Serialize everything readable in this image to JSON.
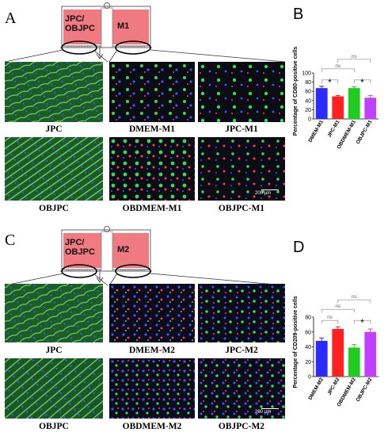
{
  "top": {
    "panel_letter": "A",
    "chamber_left_text": "JPC/\nOBJPC",
    "chamber_right_text": "M1",
    "captions": {
      "jpc": "JPC",
      "objpc": "OBJPC",
      "dmem": "DMEM-M1",
      "jpc_m": "JPC-M1",
      "obdmem": "OBDMEM-M1",
      "objpc_m": "OBJPC-M1"
    },
    "scale_bar": "200 μm"
  },
  "bottom": {
    "panel_letter": "C",
    "chamber_left_text": "JPC/\nOBJPC",
    "chamber_right_text": "M2",
    "captions": {
      "jpc": "JPC",
      "objpc": "OBJPC",
      "dmem": "DMEM-M2",
      "jpc_m": "JPC-M2",
      "obdmem": "OBDMEM-M2",
      "objpc_m": "OBJPC-M2"
    },
    "scale_bar": "200 μm"
  },
  "colors": {
    "chamber_fill": "#f07a82",
    "bar_blue": "#2b2bff",
    "bar_red": "#ff2020",
    "bar_green": "#21cc21",
    "bar_purple": "#c040ff"
  },
  "chart_data": [
    {
      "panel_letter": "B",
      "type": "bar",
      "categories": [
        "DMEM-M1",
        "JPC-M1",
        "OBDMEM-M1",
        "OBJPC-M1"
      ],
      "values": [
        67,
        49,
        67,
        46
      ],
      "errors": [
        4,
        2,
        3,
        5
      ],
      "ylabel": "Percentage of CD80-positive cells",
      "ylim": [
        0,
        100
      ],
      "yticks": [
        0,
        20,
        40,
        60,
        80,
        100
      ],
      "significance": [
        {
          "pair": [
            0,
            1
          ],
          "label": "*"
        },
        {
          "pair": [
            2,
            3
          ],
          "label": "*"
        },
        {
          "pair": [
            0,
            2
          ],
          "label": "ns"
        },
        {
          "pair": [
            1,
            3
          ],
          "label": "ns"
        }
      ]
    },
    {
      "panel_letter": "D",
      "type": "bar",
      "categories": [
        "DMEM-M2",
        "JPC-M2",
        "OBDMEM-M2",
        "OBJPC-M2"
      ],
      "values": [
        48,
        64,
        39,
        60
      ],
      "errors": [
        4,
        3,
        4,
        4
      ],
      "ylabel": "Percentage of CD209-positive cells",
      "ylim": [
        0,
        80
      ],
      "yticks": [
        0,
        20,
        40,
        60,
        80
      ],
      "significance": [
        {
          "pair": [
            0,
            1
          ],
          "label": "ns"
        },
        {
          "pair": [
            2,
            3
          ],
          "label": "*"
        },
        {
          "pair": [
            0,
            2
          ],
          "label": "ns"
        },
        {
          "pair": [
            1,
            3
          ],
          "label": "ns"
        }
      ]
    }
  ]
}
